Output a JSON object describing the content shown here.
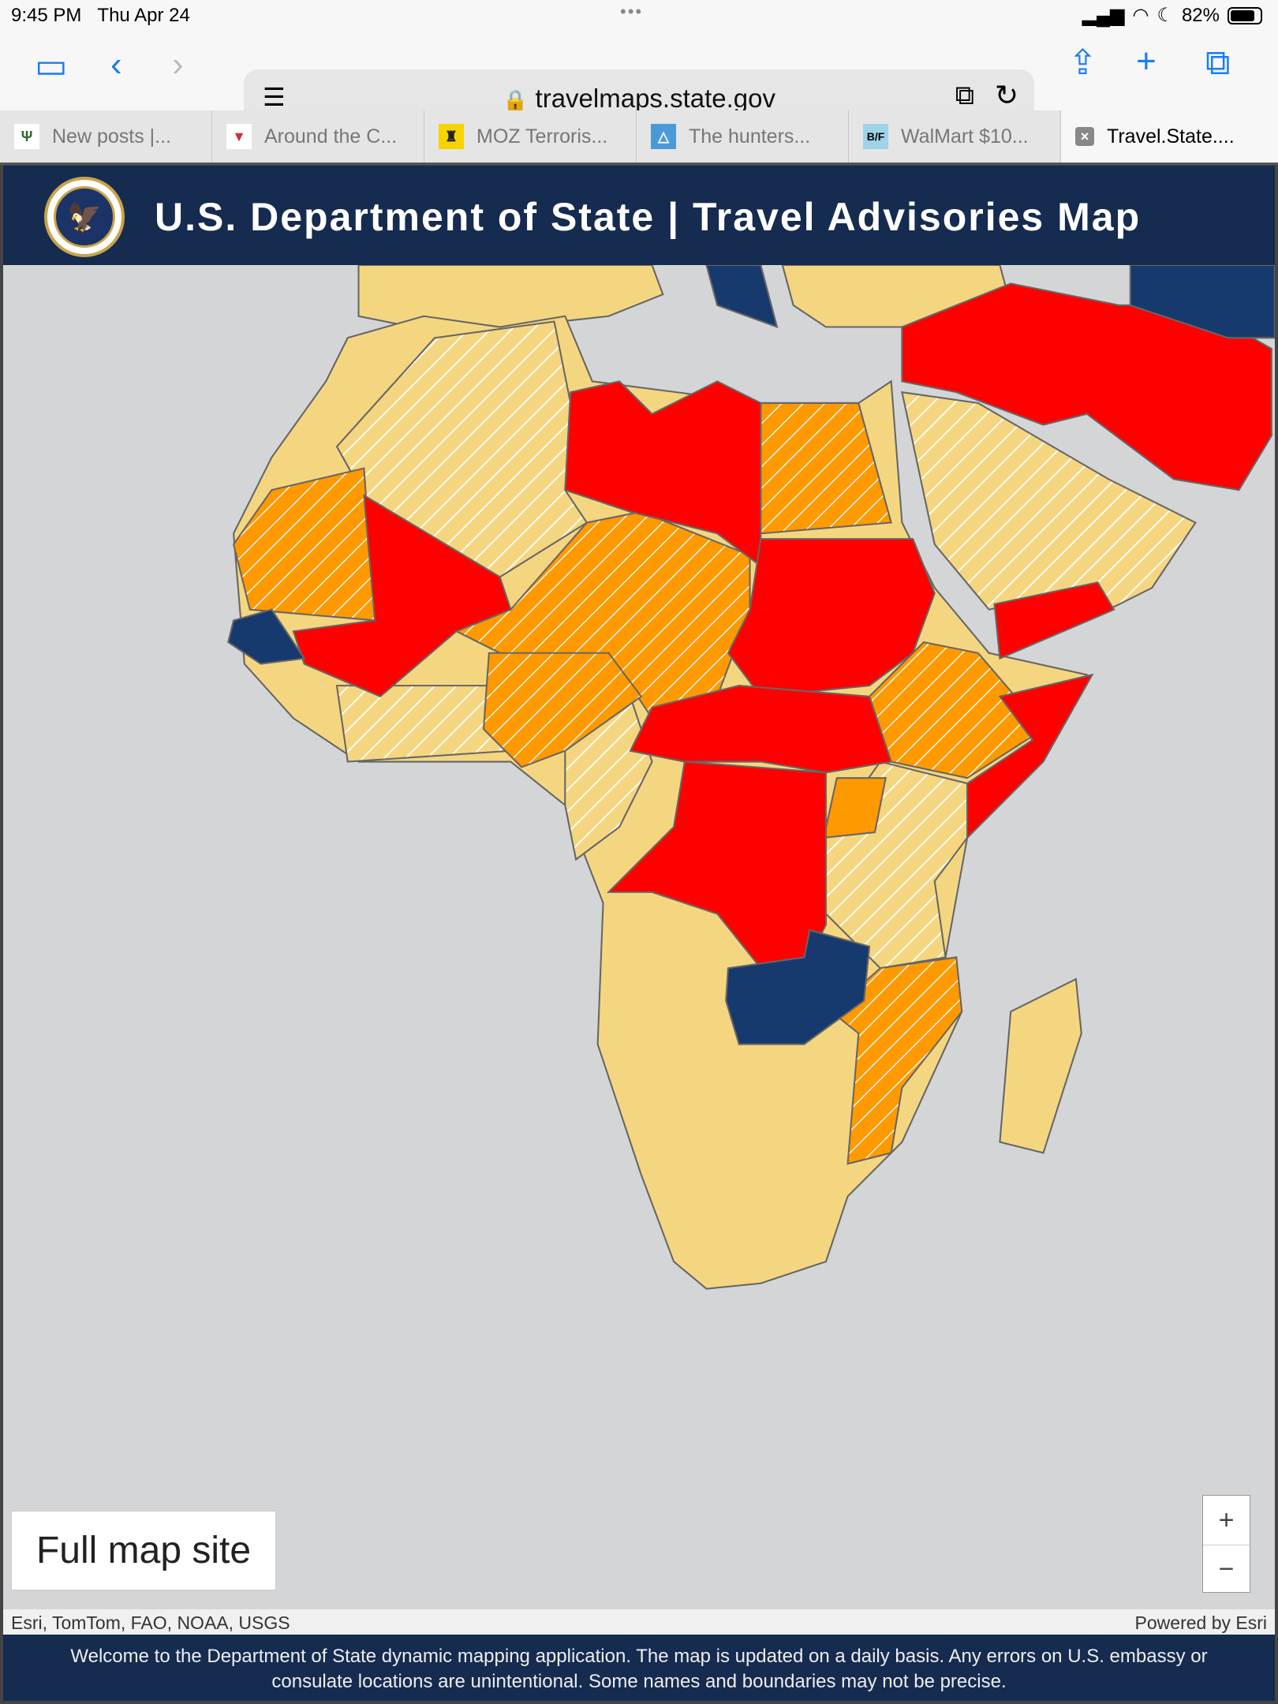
{
  "status": {
    "time": "9:45 PM",
    "date": "Thu Apr 24",
    "battery": "82%",
    "battery_level": 0.82
  },
  "browser": {
    "url": "travelmaps.state.gov",
    "tabs": [
      {
        "label": "New posts |...",
        "active": false
      },
      {
        "label": "Around the C...",
        "active": false
      },
      {
        "label": "MOZ Terroris...",
        "active": false
      },
      {
        "label": "The hunters...",
        "active": false
      },
      {
        "label": "WalMart $10...",
        "active": false
      },
      {
        "label": "Travel.State....",
        "active": true
      }
    ]
  },
  "header": {
    "title": "U.S. Department of State | Travel Advisories Map"
  },
  "map": {
    "full_site_label": "Full map site",
    "zoom_in": "+",
    "zoom_out": "−",
    "colors": {
      "level1": "#173a6e",
      "level2": "#f5d680",
      "level3": "#ff9900",
      "level4": "#ff0000",
      "water": "#d3d5d6"
    }
  },
  "attribution": {
    "left": "Esri, TomTom, FAO, NOAA, USGS",
    "right": "Powered by Esri"
  },
  "footer": {
    "text": "Welcome to the Department of State dynamic mapping application. The map is updated on a daily basis.  Any errors on U.S. embassy or consulate locations are unintentional. Some names and boundaries may not be precise."
  }
}
